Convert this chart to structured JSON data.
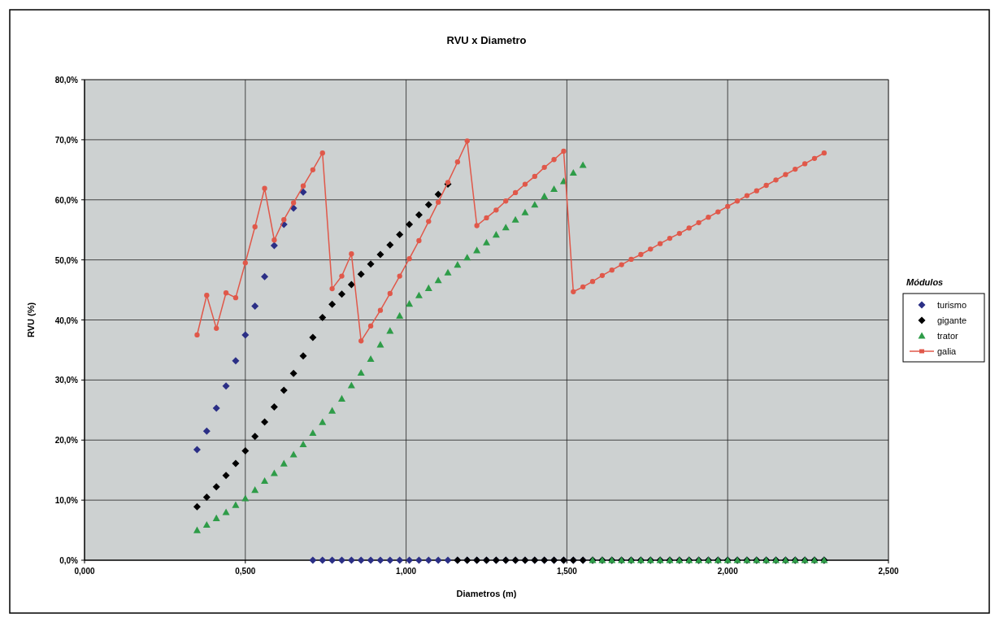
{
  "chart_data": {
    "type": "scatter",
    "title": "RVU x Diametro",
    "xlabel": "Diametros (m)",
    "ylabel": "RVU (%)",
    "legend_title": "Módulos",
    "legend": "right",
    "grid": true,
    "xlim": [
      0,
      2.5
    ],
    "xticks": [
      {
        "value": 0,
        "label": "0,000"
      },
      {
        "value": 0.5,
        "label": "0,500"
      },
      {
        "value": 1,
        "label": "1,000"
      },
      {
        "value": 1.5,
        "label": "1,500"
      },
      {
        "value": 2,
        "label": "2,000"
      },
      {
        "value": 2.5,
        "label": "2,500"
      }
    ],
    "ylim": [
      0,
      80
    ],
    "yticks": [
      {
        "value": 0,
        "label": "0,0%"
      },
      {
        "value": 10,
        "label": "10,0%"
      },
      {
        "value": 20,
        "label": "20,0%"
      },
      {
        "value": 30,
        "label": "30,0%"
      },
      {
        "value": 40,
        "label": "40,0%"
      },
      {
        "value": 50,
        "label": "50,0%"
      },
      {
        "value": 60,
        "label": "60,0%"
      },
      {
        "value": 70,
        "label": "70,0%"
      },
      {
        "value": 80,
        "label": "80,0%"
      }
    ],
    "x": [
      0.35,
      0.38,
      0.41,
      0.44,
      0.47,
      0.5,
      0.53,
      0.56,
      0.59,
      0.62,
      0.65,
      0.68,
      0.71,
      0.74,
      0.77,
      0.8,
      0.83,
      0.86,
      0.89,
      0.92,
      0.95,
      0.98,
      1.01,
      1.04,
      1.07,
      1.1,
      1.13,
      1.16,
      1.19,
      1.22,
      1.25,
      1.28,
      1.31,
      1.34,
      1.37,
      1.4,
      1.43,
      1.46,
      1.49,
      1.52,
      1.55,
      1.58,
      1.61,
      1.64,
      1.67,
      1.7,
      1.73,
      1.76,
      1.79,
      1.82,
      1.85,
      1.88,
      1.91,
      1.94,
      1.97,
      2.0,
      2.03,
      2.06,
      2.09,
      2.12,
      2.15,
      2.18,
      2.21,
      2.24,
      2.27,
      2.3
    ],
    "series": [
      {
        "name": "turismo",
        "marker": "diamond",
        "color": "#2b2f86",
        "values": [
          18.4,
          21.5,
          25.3,
          29.0,
          33.2,
          37.5,
          42.3,
          47.2,
          52.4,
          55.9,
          58.6,
          61.3,
          0,
          0,
          0,
          0,
          0,
          0,
          0,
          0,
          0,
          0,
          0,
          0,
          0,
          0,
          0,
          0,
          0,
          0,
          0,
          0,
          0,
          0,
          0,
          0,
          0,
          0,
          0,
          0,
          0,
          0,
          0,
          0,
          0,
          0,
          0,
          0,
          0,
          0,
          0,
          0,
          0,
          0,
          0,
          0,
          0,
          0,
          0,
          0,
          0,
          0,
          0,
          0,
          0,
          0
        ]
      },
      {
        "name": "gigante",
        "marker": "diamond",
        "color": "#000000",
        "values": [
          8.9,
          10.5,
          12.2,
          14.1,
          16.1,
          18.2,
          20.6,
          23.0,
          25.5,
          28.3,
          31.1,
          34.0,
          37.1,
          40.4,
          42.6,
          44.3,
          45.9,
          47.6,
          49.3,
          50.9,
          52.5,
          54.2,
          55.9,
          57.5,
          59.2,
          60.9,
          62.6,
          0,
          0,
          0,
          0,
          0,
          0,
          0,
          0,
          0,
          0,
          0,
          0,
          0,
          0,
          0,
          0,
          0,
          0,
          0,
          0,
          0,
          0,
          0,
          0,
          0,
          0,
          0,
          0,
          0,
          0,
          0,
          0,
          0,
          0,
          0,
          0,
          0,
          0,
          0
        ]
      },
      {
        "name": "trator",
        "marker": "triangle",
        "color": "#2e9c48",
        "values": [
          5.0,
          5.9,
          7.0,
          8.0,
          9.2,
          10.3,
          11.7,
          13.2,
          14.5,
          16.1,
          17.6,
          19.3,
          21.2,
          23.0,
          24.9,
          26.9,
          29.1,
          31.2,
          33.5,
          35.9,
          38.2,
          40.7,
          42.7,
          44.1,
          45.3,
          46.6,
          47.9,
          49.2,
          50.4,
          51.6,
          52.9,
          54.2,
          55.4,
          56.7,
          57.9,
          59.2,
          60.6,
          61.8,
          63.1,
          64.5,
          65.8,
          0,
          0,
          0,
          0,
          0,
          0,
          0,
          0,
          0,
          0,
          0,
          0,
          0,
          0,
          0,
          0,
          0,
          0,
          0,
          0,
          0,
          0,
          0,
          0,
          0
        ]
      },
      {
        "name": "galia",
        "type": "line",
        "marker": "circle",
        "color": "#e0584a",
        "values": [
          37.5,
          44.1,
          38.6,
          44.5,
          43.7,
          49.5,
          55.5,
          61.9,
          53.3,
          56.7,
          59.5,
          62.3,
          65.0,
          67.8,
          45.2,
          47.3,
          51.0,
          36.5,
          39.0,
          41.6,
          44.4,
          47.3,
          50.2,
          53.2,
          56.4,
          59.6,
          62.9,
          66.3,
          69.8,
          55.7,
          57.0,
          58.3,
          59.8,
          61.2,
          62.6,
          63.9,
          65.4,
          66.7,
          68.1,
          44.7,
          45.5,
          46.4,
          47.4,
          48.3,
          49.2,
          50.1,
          50.9,
          51.8,
          52.7,
          53.6,
          54.4,
          55.3,
          56.2,
          57.1,
          58.0,
          58.9,
          59.8,
          60.7,
          61.5,
          62.4,
          63.3,
          64.2,
          65.1,
          66.0,
          66.9,
          67.8
        ]
      }
    ]
  }
}
